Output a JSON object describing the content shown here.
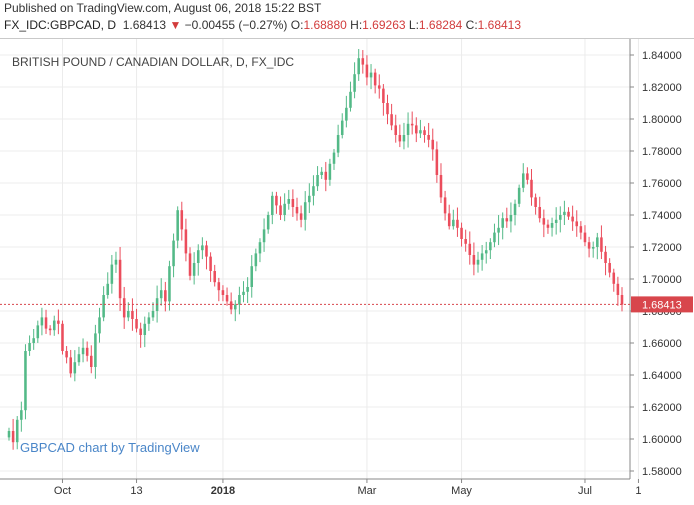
{
  "header": {
    "published": "Published on TradingView.com, August 06, 2018 15:22 BST",
    "symbol": "FX_IDC:GBPCAD, D",
    "last": "1.68413",
    "arrow": "▼",
    "change": "−0.00455 (−0.27%)",
    "o_label": "O:",
    "o_value": "1.68880",
    "h_label": "H:",
    "h_value": "1.69263",
    "l_label": "L:",
    "l_value": "1.68284",
    "c_label": "C:",
    "c_value": "1.68413"
  },
  "chart_data": {
    "type": "candlestick",
    "title": "BRITISH POUND / CANADIAN DOLLAR, D, FX_IDC",
    "watermark": "GBPCAD chart by TradingView",
    "ylim": [
      1.575,
      1.85
    ],
    "y_ticks": [
      "1.84000",
      "1.82000",
      "1.80000",
      "1.78000",
      "1.76000",
      "1.74000",
      "1.72000",
      "1.70000",
      "1.68000",
      "1.66000",
      "1.64000",
      "1.62000",
      "1.60000",
      "1.58000"
    ],
    "x_ticks": [
      "Oct",
      "13",
      "2018",
      "Mar",
      "May",
      "Jul",
      "1"
    ],
    "last_price": "1.68413",
    "grid": true,
    "colors": {
      "up": "#53b987",
      "down": "#eb4d5c",
      "grid": "#ececec",
      "last_line": "#d8464c",
      "text": "#333333"
    },
    "closes": [
      1.605,
      1.598,
      1.612,
      1.618,
      1.655,
      1.66,
      1.663,
      1.671,
      1.676,
      1.669,
      1.668,
      1.674,
      1.672,
      1.655,
      1.651,
      1.641,
      1.648,
      1.653,
      1.657,
      1.652,
      1.645,
      1.666,
      1.676,
      1.69,
      1.697,
      1.709,
      1.712,
      1.688,
      1.676,
      1.68,
      1.675,
      1.669,
      1.665,
      1.672,
      1.676,
      1.68,
      1.688,
      1.693,
      1.686,
      1.708,
      1.724,
      1.743,
      1.731,
      1.716,
      1.702,
      1.71,
      1.718,
      1.721,
      1.714,
      1.705,
      1.698,
      1.693,
      1.69,
      1.686,
      1.681,
      1.684,
      1.69,
      1.692,
      1.695,
      1.708,
      1.716,
      1.723,
      1.731,
      1.74,
      1.752,
      1.746,
      1.74,
      1.747,
      1.75,
      1.745,
      1.741,
      1.737,
      1.748,
      1.752,
      1.758,
      1.765,
      1.767,
      1.762,
      1.772,
      1.779,
      1.79,
      1.799,
      1.807,
      1.817,
      1.828,
      1.838,
      1.834,
      1.826,
      1.829,
      1.821,
      1.819,
      1.81,
      1.803,
      1.796,
      1.79,
      1.786,
      1.79,
      1.797,
      1.796,
      1.791,
      1.793,
      1.79,
      1.787,
      1.781,
      1.765,
      1.751,
      1.741,
      1.733,
      1.737,
      1.732,
      1.725,
      1.722,
      1.715,
      1.709,
      1.712,
      1.716,
      1.718,
      1.723,
      1.729,
      1.732,
      1.738,
      1.736,
      1.74,
      1.747,
      1.757,
      1.766,
      1.762,
      1.751,
      1.745,
      1.738,
      1.734,
      1.732,
      1.735,
      1.737,
      1.74,
      1.742,
      1.739,
      1.736,
      1.733,
      1.729,
      1.723,
      1.719,
      1.72,
      1.726,
      1.717,
      1.71,
      1.704,
      1.697,
      1.69,
      1.684
    ],
    "labeled_ticks_x_index": [
      13,
      31,
      52,
      87,
      110,
      140,
      153
    ]
  }
}
